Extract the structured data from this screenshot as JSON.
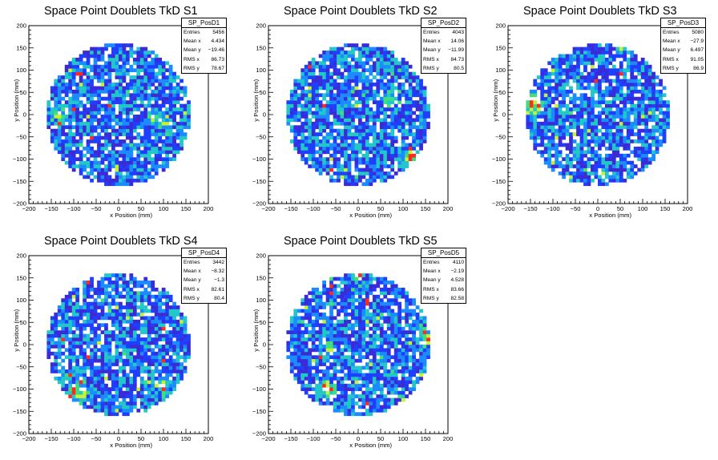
{
  "chart_data": [
    {
      "type": "heatmap",
      "title": "Space Point Doublets TkD S1",
      "histogram_name": "SP_PosD1",
      "xlabel": "x Position (mm)",
      "ylabel": "y Position (mm)",
      "xlim": [
        -200,
        200
      ],
      "ylim": [
        -200,
        200
      ],
      "x_ticks": [
        "−200",
        "−150",
        "−100",
        "−50",
        "0",
        "50",
        "100",
        "150",
        "200"
      ],
      "y_ticks": [
        "−200",
        "−150",
        "−100",
        "−50",
        "0",
        "50",
        "100",
        "150",
        "200"
      ],
      "stats": [
        {
          "label": "Entries",
          "value": "5456"
        },
        {
          "label": "Mean x",
          "value": "4.434"
        },
        {
          "label": "Mean y",
          "value": "−19.46"
        },
        {
          "label": "RMS x",
          "value": "86.73"
        },
        {
          "label": "RMS y",
          "value": "78.67"
        }
      ],
      "footprint_radius_mm": 160,
      "hotspots": [
        {
          "x": 90,
          "y": -10,
          "level": 0.8
        },
        {
          "x": -140,
          "y": 0,
          "level": 0.5
        }
      ],
      "palette": [
        "#3b2bd6",
        "#1f3fff",
        "#1a8cff",
        "#22c7c7",
        "#3fe07a",
        "#c6f232",
        "#ff2a1a"
      ]
    },
    {
      "type": "heatmap",
      "title": "Space Point Doublets TkD S2",
      "histogram_name": "SP_PosD2",
      "xlabel": "x Position (mm)",
      "ylabel": "y Position (mm)",
      "xlim": [
        -200,
        200
      ],
      "ylim": [
        -200,
        200
      ],
      "x_ticks": [
        "−200",
        "−150",
        "−100",
        "−50",
        "0",
        "50",
        "100",
        "150",
        "200"
      ],
      "y_ticks": [
        "−200",
        "−150",
        "−100",
        "−50",
        "0",
        "50",
        "100",
        "150",
        "200"
      ],
      "stats": [
        {
          "label": "Entries",
          "value": "4043"
        },
        {
          "label": "Mean x",
          "value": "14.06"
        },
        {
          "label": "Mean y",
          "value": "−11.99"
        },
        {
          "label": "RMS x",
          "value": "84.73"
        },
        {
          "label": "RMS y",
          "value": "80.5"
        }
      ],
      "footprint_radius_mm": 160,
      "hotspots": [
        {
          "x": 120,
          "y": -100,
          "level": 0.9
        },
        {
          "x": 70,
          "y": 40,
          "level": 0.5
        }
      ],
      "palette": [
        "#3b2bd6",
        "#1f3fff",
        "#1a8cff",
        "#22c7c7",
        "#3fe07a",
        "#c6f232",
        "#ff2a1a"
      ]
    },
    {
      "type": "heatmap",
      "title": "Space Point Doublets TkD S3",
      "histogram_name": "SP_PosD3",
      "xlabel": "x Position (mm)",
      "ylabel": "y Position (mm)",
      "xlim": [
        -200,
        200
      ],
      "ylim": [
        -200,
        200
      ],
      "x_ticks": [
        "−200",
        "−150",
        "−100",
        "−50",
        "0",
        "50",
        "100",
        "150",
        "200"
      ],
      "y_ticks": [
        "−200",
        "−150",
        "−100",
        "−50",
        "0",
        "50",
        "100",
        "150",
        "200"
      ],
      "stats": [
        {
          "label": "Entries",
          "value": "5080"
        },
        {
          "label": "Mean x",
          "value": "−27.9"
        },
        {
          "label": "Mean y",
          "value": "6.497"
        },
        {
          "label": "RMS x",
          "value": "91.05"
        },
        {
          "label": "RMS y",
          "value": "86.9"
        }
      ],
      "footprint_radius_mm": 160,
      "hotspots": [
        {
          "x": -145,
          "y": 20,
          "level": 0.9
        }
      ],
      "palette": [
        "#3b2bd6",
        "#1f3fff",
        "#1a8cff",
        "#22c7c7",
        "#3fe07a",
        "#c6f232",
        "#ff2a1a"
      ]
    },
    {
      "type": "heatmap",
      "title": "Space Point Doublets TkD S4",
      "histogram_name": "SP_PosD4",
      "xlabel": "x Position (mm)",
      "ylabel": "y Position (mm)",
      "xlim": [
        -200,
        200
      ],
      "ylim": [
        -200,
        200
      ],
      "x_ticks": [
        "−200",
        "−150",
        "−100",
        "−50",
        "0",
        "50",
        "100",
        "150",
        "200"
      ],
      "y_ticks": [
        "−200",
        "−150",
        "−100",
        "−50",
        "0",
        "50",
        "100",
        "150",
        "200"
      ],
      "stats": [
        {
          "label": "Entries",
          "value": "3442"
        },
        {
          "label": "Mean x",
          "value": "−8.32"
        },
        {
          "label": "Mean y",
          "value": "−1.3"
        },
        {
          "label": "RMS x",
          "value": "82.61"
        },
        {
          "label": "RMS y",
          "value": "80.4"
        }
      ],
      "footprint_radius_mm": 160,
      "hotspots": [
        {
          "x": -90,
          "y": -110,
          "level": 0.9
        },
        {
          "x": 100,
          "y": -100,
          "level": 0.5
        }
      ],
      "palette": [
        "#3b2bd6",
        "#1f3fff",
        "#1a8cff",
        "#22c7c7",
        "#3fe07a",
        "#c6f232",
        "#ff2a1a"
      ]
    },
    {
      "type": "heatmap",
      "title": "Space Point Doublets TkD S5",
      "histogram_name": "SP_PosD5",
      "xlabel": "x Position (mm)",
      "ylabel": "y Position (mm)",
      "xlim": [
        -200,
        200
      ],
      "ylim": [
        -200,
        200
      ],
      "x_ticks": [
        "−200",
        "−150",
        "−100",
        "−50",
        "0",
        "50",
        "100",
        "150",
        "200"
      ],
      "y_ticks": [
        "−200",
        "−150",
        "−100",
        "−50",
        "0",
        "50",
        "100",
        "150",
        "200"
      ],
      "stats": [
        {
          "label": "Entries",
          "value": "4110"
        },
        {
          "label": "Mean x",
          "value": "−2.19"
        },
        {
          "label": "Mean y",
          "value": "4.528"
        },
        {
          "label": "RMS x",
          "value": "83.66"
        },
        {
          "label": "RMS y",
          "value": "82.58"
        }
      ],
      "footprint_radius_mm": 160,
      "hotspots": [
        {
          "x": -70,
          "y": -10,
          "level": 0.5
        },
        {
          "x": 150,
          "y": 20,
          "level": 0.8
        },
        {
          "x": -70,
          "y": -95,
          "level": 0.7
        }
      ],
      "palette": [
        "#3b2bd6",
        "#1f3fff",
        "#1a8cff",
        "#22c7c7",
        "#3fe07a",
        "#c6f232",
        "#ff2a1a"
      ]
    }
  ]
}
